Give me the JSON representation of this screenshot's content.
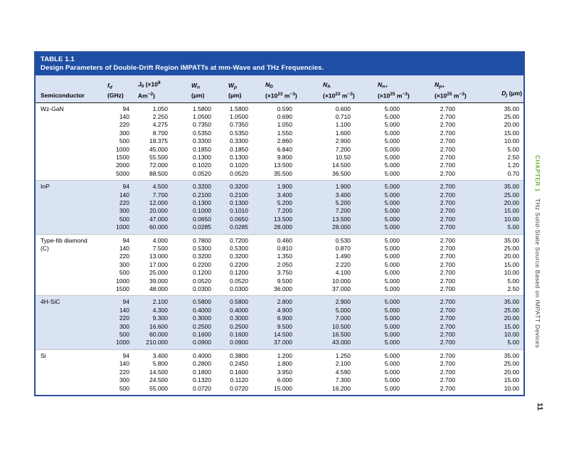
{
  "table": {
    "label": "TABLE 1.1",
    "caption": "Design Parameters of Double-Drift Region IMPATTs at mm-Wave and THz Frequencies.",
    "title_bg": "#1f4fa4",
    "stripe_bg": "#dae3f2",
    "border_color": "#2a4f9f",
    "columns": [
      {
        "key": "semiconductor",
        "lines": [
          [
            {
              "t": "Semiconductor"
            }
          ]
        ]
      },
      {
        "key": "fd",
        "lines": [
          [
            {
              "t": "f",
              "i": 1
            },
            {
              "t": "d",
              "sub": 1,
              "i": 1
            }
          ],
          [
            {
              "t": "(GHz)"
            }
          ]
        ]
      },
      {
        "key": "j0",
        "lines": [
          [
            {
              "t": "J",
              "i": 1
            },
            {
              "t": "0",
              "sub": 1
            },
            {
              "t": " (×10"
            },
            {
              "t": "8",
              "sup": 1
            }
          ],
          [
            {
              "t": "Am"
            },
            {
              "t": "−2",
              "sup": 1
            },
            {
              "t": ")"
            }
          ]
        ]
      },
      {
        "key": "wn",
        "lines": [
          [
            {
              "t": "W",
              "i": 1
            },
            {
              "t": "n",
              "sub": 1,
              "i": 1
            }
          ],
          [
            {
              "t": "(μm)"
            }
          ]
        ]
      },
      {
        "key": "wp",
        "lines": [
          [
            {
              "t": "W",
              "i": 1
            },
            {
              "t": "p",
              "sub": 1,
              "i": 1
            }
          ],
          [
            {
              "t": "(μm)"
            }
          ]
        ]
      },
      {
        "key": "nd",
        "lines": [
          [
            {
              "t": "N",
              "i": 1
            },
            {
              "t": "D",
              "sub": 1
            }
          ],
          [
            {
              "t": "(×10"
            },
            {
              "t": "23",
              "sup": 1
            },
            {
              "t": " m"
            },
            {
              "t": "−3",
              "sup": 1
            },
            {
              "t": ")"
            }
          ]
        ]
      },
      {
        "key": "na",
        "lines": [
          [
            {
              "t": "N",
              "i": 1
            },
            {
              "t": "A",
              "sub": 1
            }
          ],
          [
            {
              "t": "(×10"
            },
            {
              "t": "23",
              "sup": 1
            },
            {
              "t": " m"
            },
            {
              "t": "−3",
              "sup": 1
            },
            {
              "t": ")"
            }
          ]
        ]
      },
      {
        "key": "nnplus",
        "lines": [
          [
            {
              "t": "N",
              "i": 1
            },
            {
              "t": "n+",
              "sub": 1,
              "i": 1
            }
          ],
          [
            {
              "t": "(×10"
            },
            {
              "t": "25",
              "sup": 1
            },
            {
              "t": " m"
            },
            {
              "t": "−3",
              "sup": 1
            },
            {
              "t": ")"
            }
          ]
        ]
      },
      {
        "key": "npplus",
        "lines": [
          [
            {
              "t": "N",
              "i": 1
            },
            {
              "t": "p+",
              "sub": 1,
              "i": 1
            }
          ],
          [
            {
              "t": "(×10"
            },
            {
              "t": "25",
              "sup": 1
            },
            {
              "t": " m"
            },
            {
              "t": "−3",
              "sup": 1
            },
            {
              "t": ")"
            }
          ]
        ]
      },
      {
        "key": "dj",
        "lines": [
          [
            {
              "t": "D",
              "i": 1
            },
            {
              "t": "j",
              "sub": 1,
              "i": 1
            },
            {
              "t": " (μm)"
            }
          ]
        ]
      }
    ],
    "groups": [
      {
        "name": "Wz-GaN",
        "name2": "",
        "rows": [
          [
            "94",
            "1.050",
            "1.5800",
            "1.5800",
            "0.590",
            "0.600",
            "5.000",
            "2.700",
            "35.00"
          ],
          [
            "140",
            "2.250",
            "1.0500",
            "1.0500",
            "0.690",
            "0.710",
            "5.000",
            "2.700",
            "25.00"
          ],
          [
            "220",
            "4.275",
            "0.7350",
            "0.7350",
            "1.050",
            "1.100",
            "5.000",
            "2.700",
            "20.00"
          ],
          [
            "300",
            "8.700",
            "0.5350",
            "0.5350",
            "1.550",
            "1.600",
            "5.000",
            "2.700",
            "15.00"
          ],
          [
            "500",
            "18.375",
            "0.3300",
            "0.3300",
            "2.860",
            "2.900",
            "5.000",
            "2.700",
            "10.00"
          ],
          [
            "1000",
            "45.000",
            "0.1850",
            "0.1850",
            "6.840",
            "7.200",
            "5.000",
            "2.700",
            "5.00"
          ],
          [
            "1500",
            "55.500",
            "0.1300",
            "0.1300",
            "9.800",
            "10.50",
            "5.000",
            "2.700",
            "2.50"
          ],
          [
            "2000",
            "72.000",
            "0.1020",
            "0.1020",
            "13.500",
            "14.500",
            "5.000",
            "2.700",
            "1.20"
          ],
          [
            "5000",
            "88.500",
            "0.0520",
            "0.0520",
            "35.500",
            "36.500",
            "5.000",
            "2.700",
            "0.70"
          ]
        ]
      },
      {
        "name": "InP",
        "name2": "",
        "rows": [
          [
            "94",
            "4.500",
            "0.3200",
            "0.3200",
            "1.900",
            "1.900",
            "5.000",
            "2.700",
            "35.00"
          ],
          [
            "140",
            "7.700",
            "0.2100",
            "0.2100",
            "3.400",
            "3.400",
            "5.000",
            "2.700",
            "25.00"
          ],
          [
            "220",
            "12.000",
            "0.1300",
            "0.1300",
            "5.200",
            "5.200",
            "5.000",
            "2.700",
            "20.00"
          ],
          [
            "300",
            "20.000",
            "0.1000",
            "0.1010",
            "7.200",
            "7.200",
            "5.000",
            "2.700",
            "15.00"
          ],
          [
            "500",
            "47.000",
            "0.0650",
            "0.0650",
            "13.500",
            "13.500",
            "5.000",
            "2.700",
            "10.00"
          ],
          [
            "1000",
            "60.000",
            "0.0285",
            "0.0285",
            "28.000",
            "28.000",
            "5.000",
            "2.700",
            "5.00"
          ]
        ]
      },
      {
        "name": "Type-IIb diamond",
        "name2": "(C)",
        "rows": [
          [
            "94",
            "4.000",
            "0.7800",
            "0.7200",
            "0.460",
            "0.530",
            "5.000",
            "2.700",
            "35.00"
          ],
          [
            "140",
            "7.500",
            "0.5300",
            "0.5300",
            "0.810",
            "0.870",
            "5.000",
            "2.700",
            "25.00"
          ],
          [
            "220",
            "13.000",
            "0.3200",
            "0.3200",
            "1.350",
            "1.490",
            "5.000",
            "2.700",
            "20.00"
          ],
          [
            "300",
            "17.000",
            "0.2200",
            "0.2200",
            "2.050",
            "2.220",
            "5.000",
            "2.700",
            "15.00"
          ],
          [
            "500",
            "25.000",
            "0.1200",
            "0.1200",
            "3.750",
            "4.100",
            "5.000",
            "2.700",
            "10.00"
          ],
          [
            "1000",
            "39.000",
            "0.0520",
            "0.0520",
            "9.500",
            "10.000",
            "5.000",
            "2.700",
            "5.00"
          ],
          [
            "1500",
            "48.000",
            "0.0300",
            "0.0300",
            "36.000",
            "37.000",
            "5.000",
            "2.700",
            "2.50"
          ]
        ]
      },
      {
        "name": "4H-SiC",
        "name2": "",
        "rows": [
          [
            "94",
            "2.100",
            "0.5800",
            "0.5800",
            "2.800",
            "2.900",
            "5.000",
            "2.700",
            "35.00"
          ],
          [
            "140",
            "4.300",
            "0.4000",
            "0.4000",
            "4.900",
            "5.000",
            "5.000",
            "2.700",
            "25.00"
          ],
          [
            "220",
            "9.300",
            "0.3000",
            "0.3000",
            "6.900",
            "7.000",
            "5.000",
            "2.700",
            "20.00"
          ],
          [
            "300",
            "16.600",
            "0.2500",
            "0.2500",
            "9.500",
            "10.500",
            "5.000",
            "2.700",
            "15.00"
          ],
          [
            "500",
            "60.000",
            "0.1600",
            "0.1600",
            "14.500",
            "16.500",
            "5.000",
            "2.700",
            "10.00"
          ],
          [
            "1000",
            "210.000",
            "0.0900",
            "0.0900",
            "37.000",
            "43.000",
            "5.000",
            "2.700",
            "5.00"
          ]
        ]
      },
      {
        "name": "Si",
        "name2": "",
        "rows": [
          [
            "94",
            "3.400",
            "0.4000",
            "0.3800",
            "1.200",
            "1.250",
            "5.000",
            "2.700",
            "35.00"
          ],
          [
            "140",
            "5.800",
            "0.2800",
            "0.2450",
            "1.800",
            "2.100",
            "5.000",
            "2.700",
            "25.00"
          ],
          [
            "220",
            "14.500",
            "0.1800",
            "0.1600",
            "3.950",
            "4.590",
            "5.000",
            "2.700",
            "20.00"
          ],
          [
            "300",
            "24.500",
            "0.1320",
            "0.1120",
            "6.000",
            "7.300",
            "5.000",
            "2.700",
            "15.00"
          ],
          [
            "500",
            "55.000",
            "0.0720",
            "0.0720",
            "15.000",
            "16.200",
            "5.000",
            "2.700",
            "10.00"
          ]
        ]
      }
    ]
  },
  "sidebar": {
    "chapter": "CHAPTER 1",
    "chapter_color": "#6cb33f",
    "title": "THz Solid-State Source Based on IMPATT Devices",
    "page_number": "11"
  }
}
